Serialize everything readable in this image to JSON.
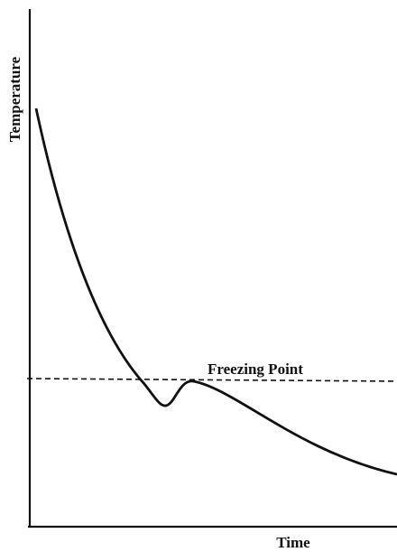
{
  "y_axis_label": "Temperature",
  "x_axis_label": "Time",
  "annotation": "Freezing Point"
}
